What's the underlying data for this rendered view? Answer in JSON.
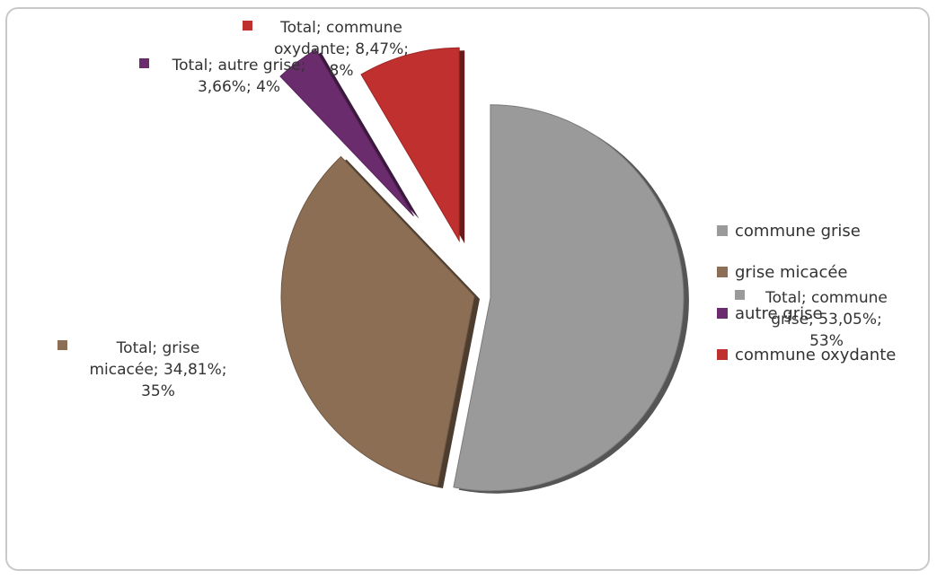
{
  "chart_data": {
    "type": "pie",
    "title": "",
    "exploded": true,
    "slices": [
      {
        "name": "commune grise",
        "label_lines": [
          "Total; commune",
          "grise; 53,05%;",
          "53%"
        ],
        "value": 53.05,
        "rounded": "53%",
        "color": "#9a9a9a"
      },
      {
        "name": "grise micacée",
        "label_lines": [
          "Total; grise",
          "micacée; 34,81%;",
          "35%"
        ],
        "value": 34.81,
        "rounded": "35%",
        "color": "#8c6e55"
      },
      {
        "name": "autre grise",
        "label_lines": [
          "Total; autre grise;",
          "3,66%; 4%"
        ],
        "value": 3.66,
        "rounded": "4%",
        "color": "#6b2c6e"
      },
      {
        "name": "commune oxydante",
        "label_lines": [
          "Total; commune",
          "oxydante; 8,47%;",
          "8%"
        ],
        "value": 8.47,
        "rounded": "8%",
        "color": "#c0302f"
      }
    ],
    "legend": {
      "position": "right",
      "entries": [
        "commune grise",
        "grise micacée",
        "autre grise",
        "commune oxydante"
      ]
    }
  }
}
